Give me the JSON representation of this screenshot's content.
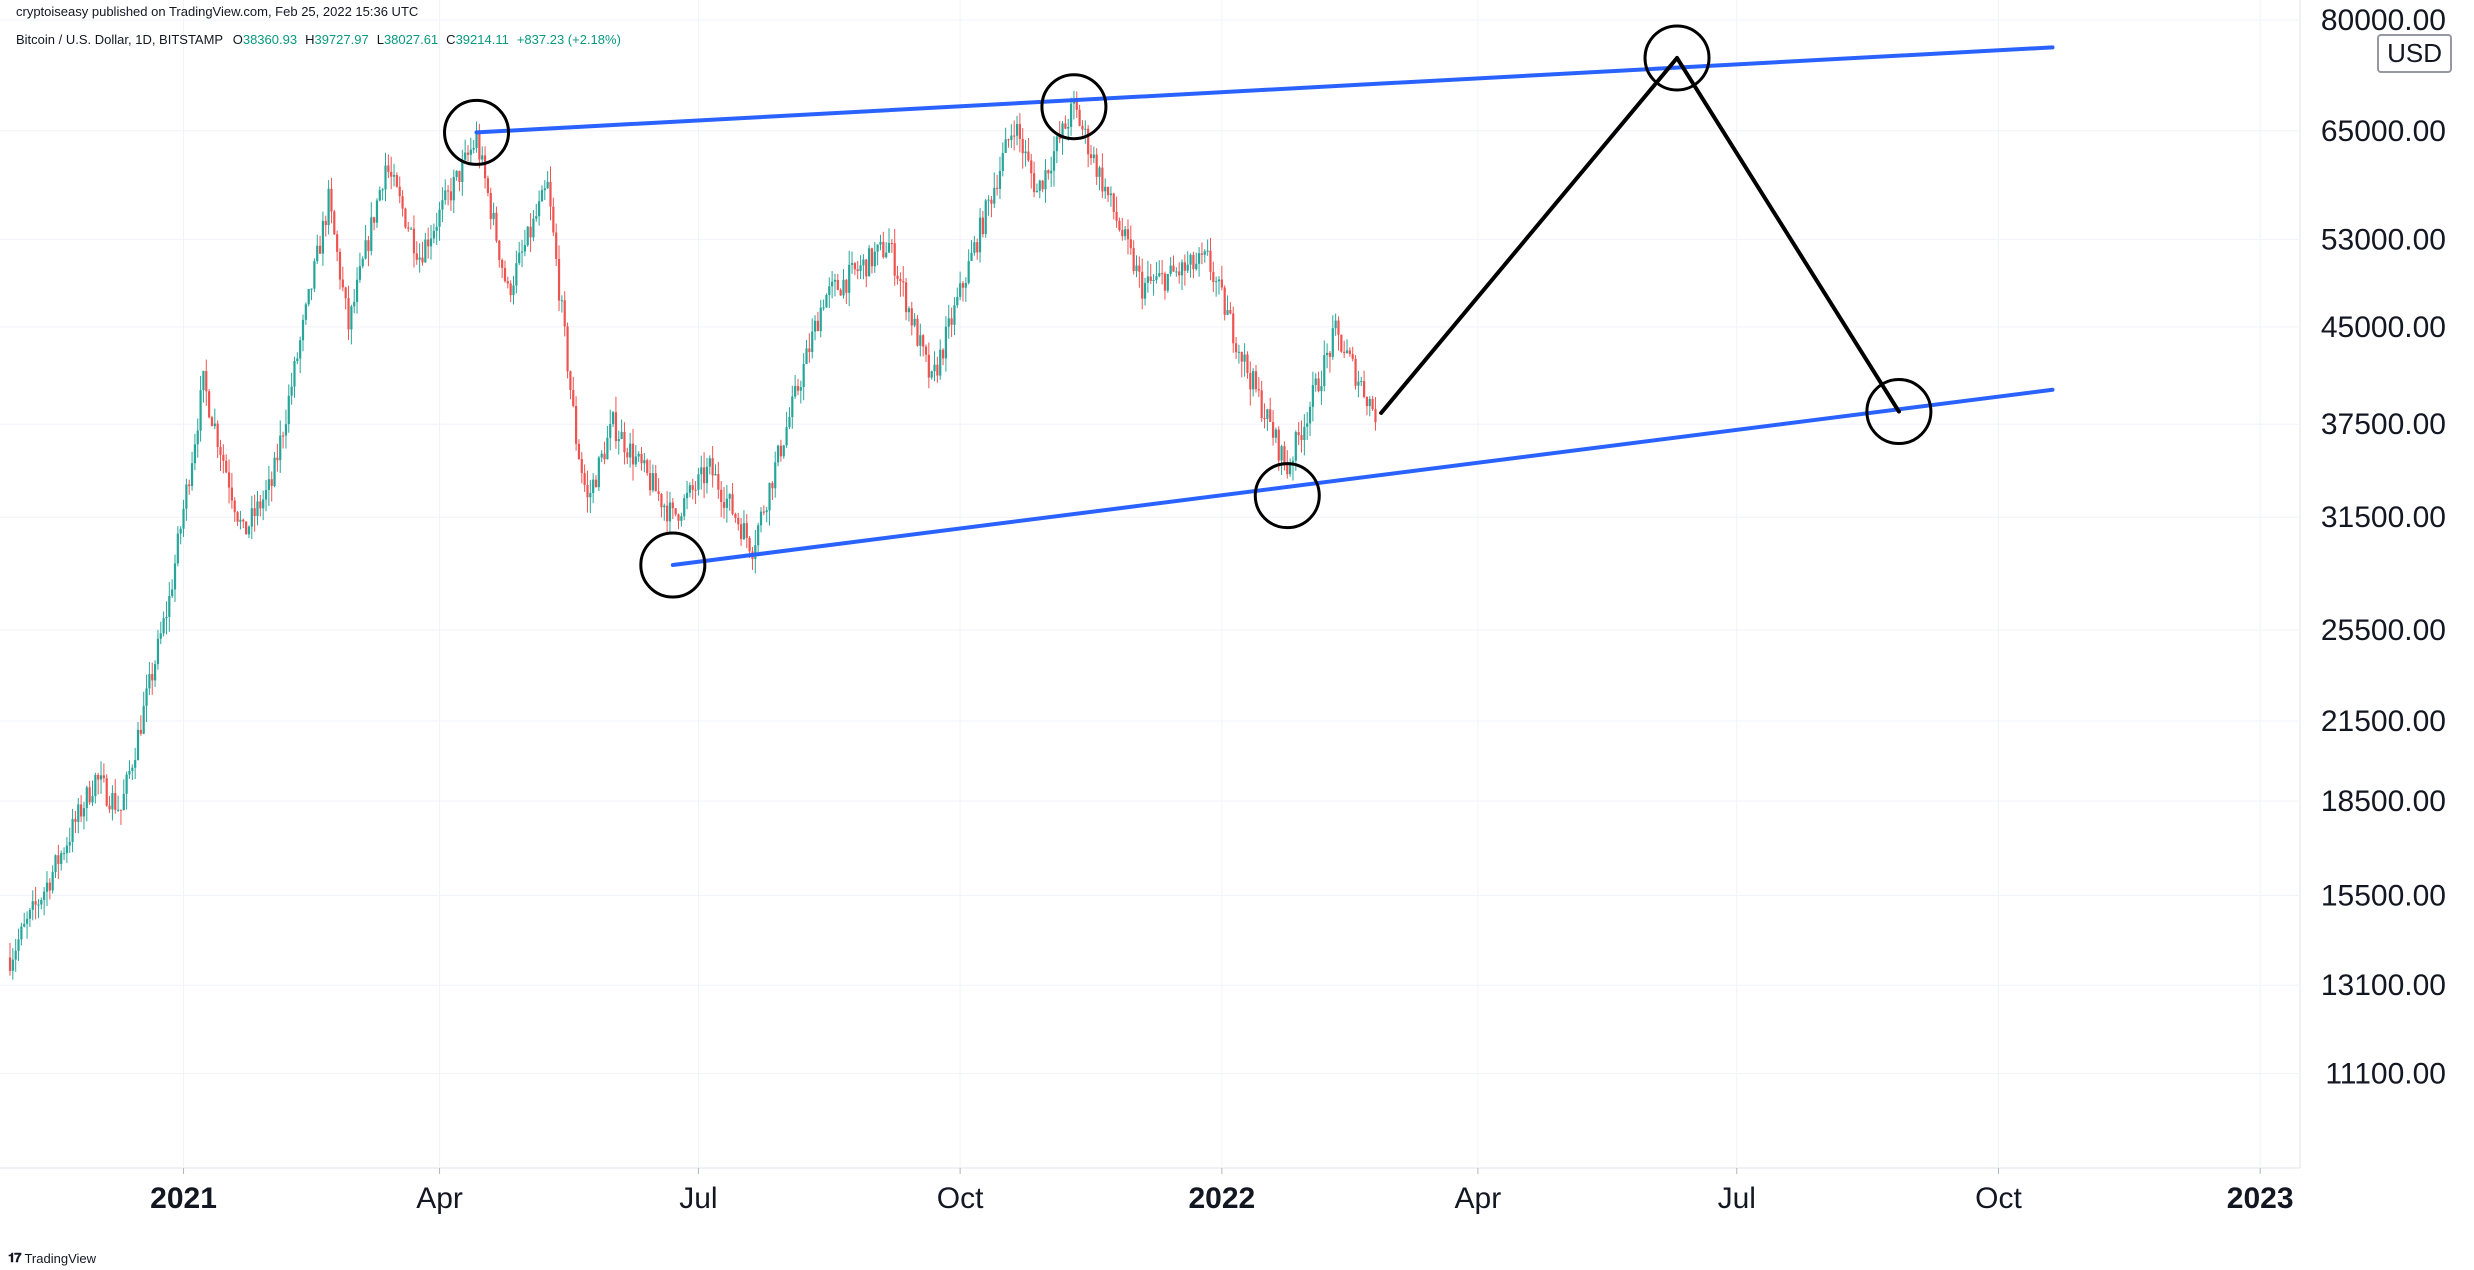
{
  "header": {
    "published": "cryptoiseasy published on TradingView.com, Feb 25, 2022 15:36 UTC",
    "ticker": "Bitcoin / U.S. Dollar, 1D, BITSTAMP",
    "ohlc": [
      {
        "label": "O",
        "value": "38360.93"
      },
      {
        "label": "H",
        "value": "39727.97"
      },
      {
        "label": "L",
        "value": "38027.61"
      },
      {
        "label": "C",
        "value": "39214.11"
      },
      {
        "label": "",
        "value": "+837.23 (+2.18%)"
      }
    ]
  },
  "currency": "USD",
  "footer": {
    "brand": "TradingView",
    "logo": "tv-logo-icon"
  },
  "colors": {
    "up": "#26a69a",
    "down": "#ef5350",
    "channel": "#2962ff",
    "projection": "#000000",
    "grid": "#f0f3fa",
    "axis_text": "#131722"
  },
  "chart_data": {
    "type": "candlestick",
    "title": "",
    "symbol": "BTCUSD",
    "interval": "1D",
    "exchange": "BITSTAMP",
    "y_scale": "log",
    "ylim": [
      9300,
      80000
    ],
    "xlim": [
      "2020-11-01",
      "2023-01-15"
    ],
    "x_ticks": [
      {
        "label": "2021",
        "date": "2021-01-01",
        "bold": true
      },
      {
        "label": "Apr",
        "date": "2021-04-01"
      },
      {
        "label": "Jul",
        "date": "2021-07-01"
      },
      {
        "label": "Oct",
        "date": "2021-10-01"
      },
      {
        "label": "2022",
        "date": "2022-01-01",
        "bold": true
      },
      {
        "label": "Apr",
        "date": "2022-04-01"
      },
      {
        "label": "Jul",
        "date": "2022-07-01"
      },
      {
        "label": "Oct",
        "date": "2022-10-01"
      },
      {
        "label": "2023",
        "date": "2023-01-01",
        "bold": true
      }
    ],
    "y_ticks": [
      80000,
      65000,
      53000,
      45000,
      37500,
      31500,
      25500,
      21500,
      18500,
      15500,
      13100,
      11100
    ],
    "price_path": [
      [
        "2020-11-01",
        13800
      ],
      [
        "2020-11-15",
        16000
      ],
      [
        "2020-12-01",
        19300
      ],
      [
        "2020-12-10",
        18200
      ],
      [
        "2020-12-27",
        27000
      ],
      [
        "2021-01-08",
        40500
      ],
      [
        "2021-01-22",
        30500
      ],
      [
        "2021-02-01",
        33500
      ],
      [
        "2021-02-21",
        57000
      ],
      [
        "2021-02-28",
        45000
      ],
      [
        "2021-03-13",
        61000
      ],
      [
        "2021-03-25",
        51500
      ],
      [
        "2021-04-14",
        64000
      ],
      [
        "2021-04-25",
        48000
      ],
      [
        "2021-05-09",
        58500
      ],
      [
        "2021-05-19",
        36500
      ],
      [
        "2021-05-23",
        32500
      ],
      [
        "2021-06-01",
        37500
      ],
      [
        "2021-06-22",
        31500
      ],
      [
        "2021-07-05",
        34500
      ],
      [
        "2021-07-20",
        29800
      ],
      [
        "2021-08-14",
        47500
      ],
      [
        "2021-09-06",
        52500
      ],
      [
        "2021-09-21",
        40500
      ],
      [
        "2021-10-20",
        66000
      ],
      [
        "2021-10-28",
        58000
      ],
      [
        "2021-11-10",
        68000
      ],
      [
        "2021-12-04",
        48500
      ],
      [
        "2021-12-27",
        51000
      ],
      [
        "2022-01-10",
        41500
      ],
      [
        "2022-01-24",
        34500
      ],
      [
        "2022-02-10",
        44500
      ],
      [
        "2022-02-24",
        38300
      ]
    ],
    "annotations": {
      "channel_upper": [
        [
          "2021-04-14",
          64800
        ],
        [
          "2022-10-20",
          76000
        ]
      ],
      "channel_lower": [
        [
          "2021-06-22",
          28800
        ],
        [
          "2022-10-20",
          40000
        ]
      ],
      "projection_path": [
        [
          "2022-02-26",
          38300
        ],
        [
          "2022-06-10",
          74500
        ],
        [
          "2022-08-27",
          38400
        ]
      ],
      "circled_points": [
        [
          "2021-04-14",
          64800
        ],
        [
          "2021-06-22",
          28800
        ],
        [
          "2021-11-10",
          68000
        ],
        [
          "2022-01-24",
          32800
        ],
        [
          "2022-06-10",
          74500
        ],
        [
          "2022-08-27",
          38400
        ]
      ]
    }
  }
}
